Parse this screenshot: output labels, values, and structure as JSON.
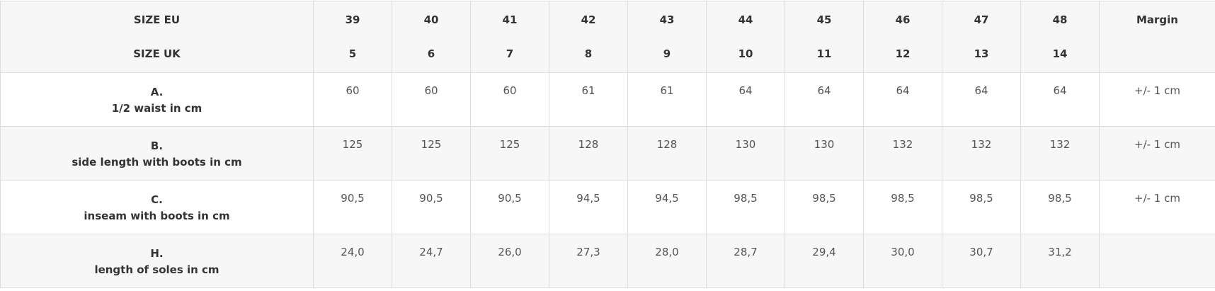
{
  "header": {
    "eu_label": "SIZE EU",
    "uk_label": "SIZE UK",
    "margin_label": "Margin",
    "sizes": [
      {
        "eu": "39",
        "uk": "5"
      },
      {
        "eu": "40",
        "uk": "6"
      },
      {
        "eu": "41",
        "uk": "7"
      },
      {
        "eu": "42",
        "uk": "8"
      },
      {
        "eu": "43",
        "uk": "9"
      },
      {
        "eu": "44",
        "uk": "10"
      },
      {
        "eu": "45",
        "uk": "11"
      },
      {
        "eu": "46",
        "uk": "12"
      },
      {
        "eu": "47",
        "uk": "13"
      },
      {
        "eu": "48",
        "uk": "14"
      }
    ]
  },
  "rows": [
    {
      "letter": "A.",
      "label": "1/2 waist in cm",
      "values": [
        "60",
        "60",
        "60",
        "61",
        "61",
        "64",
        "64",
        "64",
        "64",
        "64"
      ],
      "margin": "+/- 1 cm"
    },
    {
      "letter": "B.",
      "label": "side length with boots in cm",
      "values": [
        "125",
        "125",
        "125",
        "128",
        "128",
        "130",
        "130",
        "132",
        "132",
        "132"
      ],
      "margin": "+/- 1 cm"
    },
    {
      "letter": "C.",
      "label": "inseam with boots in cm",
      "values": [
        "90,5",
        "90,5",
        "90,5",
        "94,5",
        "94,5",
        "98,5",
        "98,5",
        "98,5",
        "98,5",
        "98,5"
      ],
      "margin": "+/- 1 cm"
    },
    {
      "letter": "H.",
      "label": "length of soles in cm",
      "values": [
        "24,0",
        "24,7",
        "26,0",
        "27,3",
        "28,0",
        "28,7",
        "29,4",
        "30,0",
        "30,7",
        "31,2"
      ],
      "margin": ""
    }
  ]
}
